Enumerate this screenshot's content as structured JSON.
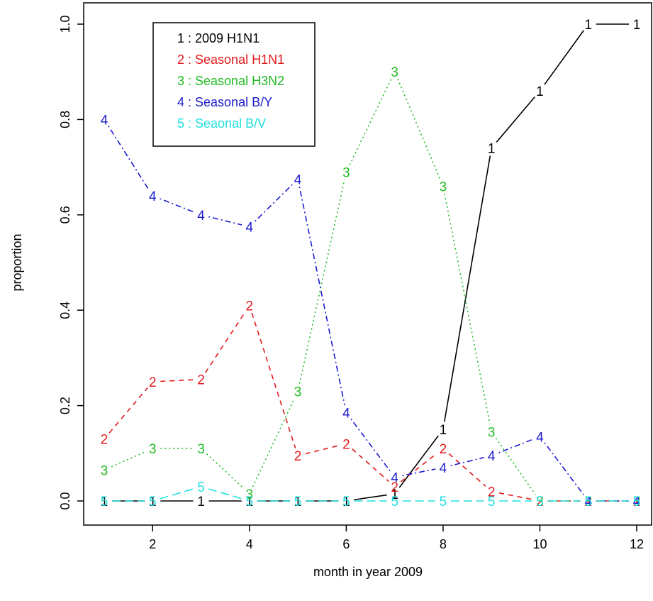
{
  "chart_data": {
    "type": "line",
    "title": "",
    "xlabel": "month in year 2009",
    "ylabel": "proportion",
    "x": [
      1,
      2,
      3,
      4,
      5,
      6,
      7,
      8,
      9,
      10,
      11,
      12
    ],
    "xlim": [
      1,
      12
    ],
    "ylim": [
      0,
      1
    ],
    "xticks": [
      2,
      4,
      6,
      8,
      10,
      12
    ],
    "yticks": [
      0.0,
      0.2,
      0.4,
      0.6,
      0.8,
      1.0
    ],
    "xtick_labels": [
      "2",
      "4",
      "6",
      "8",
      "10",
      "12"
    ],
    "ytick_labels": [
      "0.0",
      "0.2",
      "0.4",
      "0.6",
      "0.8",
      "1.0"
    ],
    "grid": false,
    "legend_position": "top-left",
    "series": [
      {
        "name": "2009 H1N1",
        "label": "1",
        "color": "#000000",
        "dash": "solid",
        "values": [
          0,
          0,
          0,
          0,
          0,
          0,
          0.015,
          0.15,
          0.74,
          0.86,
          1.0,
          1.0
        ]
      },
      {
        "name": "Seasonal H1N1",
        "label": "2",
        "color": "#e41a1c",
        "dash": "dashed",
        "values": [
          0.13,
          0.25,
          0.255,
          0.41,
          0.095,
          0.12,
          0.03,
          0.11,
          0.02,
          0,
          0,
          0
        ]
      },
      {
        "name": "Seasonal H3N2",
        "label": "3",
        "color": "#22bb22",
        "dash": "dotted",
        "values": [
          0.065,
          0.11,
          0.11,
          0.015,
          0.23,
          0.69,
          0.9,
          0.66,
          0.145,
          0,
          0,
          0
        ]
      },
      {
        "name": "Seasonal B/Y",
        "label": "4",
        "color": "#1a1ad0",
        "dash": "dotdash",
        "values": [
          0.8,
          0.64,
          0.6,
          0.575,
          0.675,
          0.185,
          0.05,
          0.07,
          0.095,
          0.135,
          0,
          0
        ]
      },
      {
        "name": "Seaonal B/V",
        "label": "5",
        "color": "#22e0e0",
        "dash": "longdash",
        "values": [
          0,
          0,
          0.03,
          0,
          0,
          0,
          0,
          0,
          0,
          0,
          0,
          0
        ]
      }
    ],
    "legend_entries": [
      "1 : 2009 H1N1",
      "2 : Seasonal H1N1",
      "3 : Seasonal H3N2",
      "4 : Seasonal B/Y",
      "5 : Seaonal B/V"
    ]
  }
}
